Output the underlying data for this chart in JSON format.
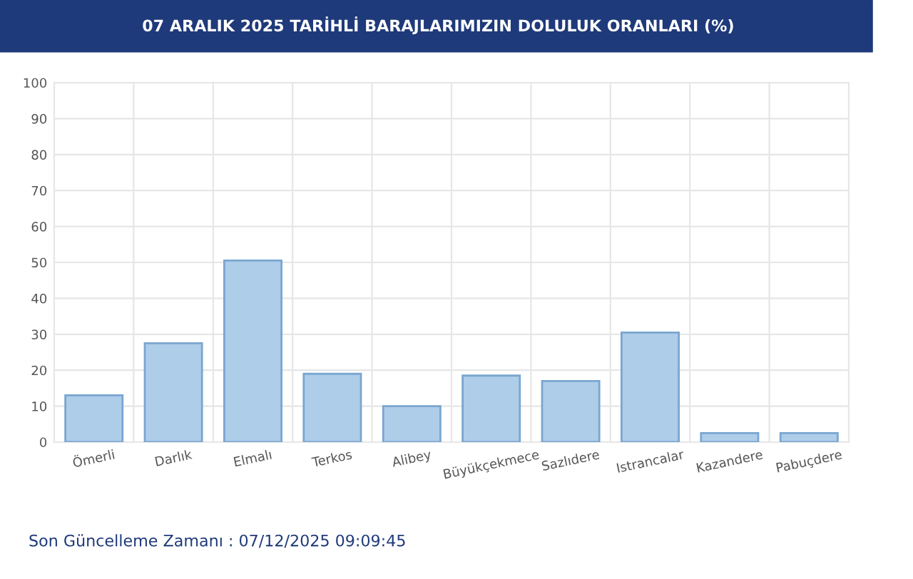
{
  "chart_data": {
    "type": "bar",
    "title": "07 ARALIK 2025 TARİHLİ BARAJLARIMIZIN DOLULUK ORANLARI (%)",
    "categories": [
      "Ömerli",
      "Darlık",
      "Elmalı",
      "Terkos",
      "Alibey",
      "Büyükçekmece",
      "Sazlıdere",
      "Istrancalar",
      "Kazandere",
      "Pabuçdere"
    ],
    "values": [
      13,
      27.5,
      50.5,
      19,
      10,
      18.5,
      17,
      30.5,
      2.5,
      2.5
    ],
    "color": "#aecde9",
    "ylim": [
      0,
      100
    ],
    "yticks": [
      0,
      10,
      20,
      30,
      40,
      50,
      60,
      70,
      80,
      90,
      100
    ],
    "grid": true,
    "annotations": [
      "Son Güncelleme Zamanı : 07/12/2025 09:09:45"
    ]
  }
}
